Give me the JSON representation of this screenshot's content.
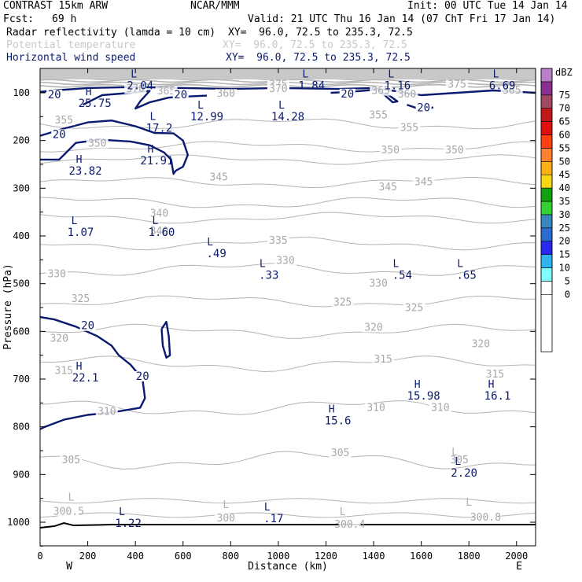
{
  "header": {
    "model": "CONTRAST 15km ARW",
    "org": "NCAR/MMM",
    "init": "Init: 00 UTC Tue 14 Jan 14",
    "fcst_label": "Fcst:",
    "fcst_value": "69 h",
    "valid": "Valid: 21 UTC Thu 16 Jan 14 (07 ChT Fri 17 Jan 14)",
    "fields": [
      {
        "name": "Radar reflectivity (lamda = 10 cm)",
        "xy": "XY=  96.0, 72.5 to 235.3, 72.5",
        "color": "#000000"
      },
      {
        "name": "Potential temperature",
        "xy": "XY=  96.0, 72.5 to 235.3, 72.5",
        "color": "#c8c8c8"
      },
      {
        "name": "Horizontal wind speed",
        "xy": "XY=  96.0, 72.5 to 235.3, 72.5",
        "color": "#0a1a6e"
      }
    ]
  },
  "chart_data": {
    "type": "contour",
    "xlabel": "Distance (km)",
    "ylabel": "Pressure (hPa)",
    "xlim": [
      0,
      2080
    ],
    "ylim": [
      1050,
      60
    ],
    "x_ticks": [
      0,
      200,
      400,
      600,
      800,
      1000,
      1200,
      1400,
      1600,
      1800,
      2000
    ],
    "y_ticks": [
      100,
      200,
      300,
      400,
      500,
      600,
      700,
      800,
      900,
      1000
    ],
    "direction_labels": {
      "west": "W",
      "east": "E"
    },
    "colors": {
      "theta": "#b4b4b4",
      "wind": "#0a1a6e",
      "ground": "#000000"
    },
    "colorbar": {
      "unit": "dBZ",
      "levels": [
        0,
        5,
        10,
        15,
        20,
        25,
        30,
        35,
        40,
        45,
        50,
        55,
        60,
        65,
        70,
        75
      ],
      "colors": [
        "#ffffff",
        "#80ffff",
        "#30b4f0",
        "#2828f0",
        "#2c6cd0",
        "#3a86c0",
        "#34d034",
        "#10a010",
        "#f8d814",
        "#ffb014",
        "#ff8030",
        "#ff4010",
        "#e01010",
        "#c01818",
        "#a04a60",
        "#8a3090",
        "#b880c8"
      ]
    },
    "theta_labels": [
      {
        "text": "375",
        "x": 1000,
        "p": 88
      },
      {
        "text": "375",
        "x": 1750,
        "p": 88
      },
      {
        "text": "370",
        "x": 400,
        "p": 97
      },
      {
        "text": "370",
        "x": 1000,
        "p": 97
      },
      {
        "text": "365",
        "x": 530,
        "p": 102
      },
      {
        "text": "365",
        "x": 1430,
        "p": 101
      },
      {
        "text": "365",
        "x": 1980,
        "p": 100
      },
      {
        "text": "360",
        "x": 1540,
        "p": 108
      },
      {
        "text": "360",
        "x": 780,
        "p": 107
      },
      {
        "text": "355",
        "x": 100,
        "p": 163
      },
      {
        "text": "355",
        "x": 1420,
        "p": 152
      },
      {
        "text": "355",
        "x": 1550,
        "p": 178
      },
      {
        "text": "350",
        "x": 240,
        "p": 211
      },
      {
        "text": "350",
        "x": 1470,
        "p": 225
      },
      {
        "text": "350",
        "x": 1740,
        "p": 225
      },
      {
        "text": "345",
        "x": 750,
        "p": 282
      },
      {
        "text": "345",
        "x": 1460,
        "p": 303
      },
      {
        "text": "345",
        "x": 1610,
        "p": 292
      },
      {
        "text": "340",
        "x": 500,
        "p": 358
      },
      {
        "text": "340",
        "x": 500,
        "p": 395
      },
      {
        "text": "335",
        "x": 1000,
        "p": 415
      },
      {
        "text": "330",
        "x": 70,
        "p": 485
      },
      {
        "text": "330",
        "x": 1030,
        "p": 457
      },
      {
        "text": "330",
        "x": 1420,
        "p": 505
      },
      {
        "text": "325",
        "x": 170,
        "p": 537
      },
      {
        "text": "325",
        "x": 1270,
        "p": 544
      },
      {
        "text": "325",
        "x": 1570,
        "p": 556
      },
      {
        "text": "320",
        "x": 80,
        "p": 620
      },
      {
        "text": "320",
        "x": 1400,
        "p": 597
      },
      {
        "text": "320",
        "x": 1850,
        "p": 632
      },
      {
        "text": "315",
        "x": 100,
        "p": 688
      },
      {
        "text": "315",
        "x": 1440,
        "p": 664
      },
      {
        "text": "315",
        "x": 1910,
        "p": 695
      },
      {
        "text": "310",
        "x": 280,
        "p": 773
      },
      {
        "text": "310",
        "x": 1410,
        "p": 765
      },
      {
        "text": "310",
        "x": 1680,
        "p": 765
      },
      {
        "text": "305",
        "x": 130,
        "p": 875
      },
      {
        "text": "305",
        "x": 1260,
        "p": 860
      },
      {
        "text": "305",
        "x": 1760,
        "p": 875
      },
      {
        "text": "300.5",
        "x": 120,
        "p": 983
      },
      {
        "text": "300",
        "x": 780,
        "p": 997
      },
      {
        "text": "300.4",
        "x": 1300,
        "p": 1010
      },
      {
        "text": "300.8",
        "x": 1870,
        "p": 995
      }
    ],
    "theta_extrema": [
      {
        "text": "L",
        "x": 130,
        "p": 955
      },
      {
        "text": "L",
        "x": 780,
        "p": 970
      },
      {
        "text": "L",
        "x": 1270,
        "p": 985
      },
      {
        "text": "L",
        "x": 1800,
        "p": 965
      },
      {
        "text": "L",
        "x": 1740,
        "p": 860
      }
    ],
    "wind_labels": [
      {
        "text": "20",
        "x": 60,
        "p": 110
      },
      {
        "text": "20",
        "x": 590,
        "p": 110
      },
      {
        "text": "20",
        "x": 1290,
        "p": 108
      },
      {
        "text": "20",
        "x": 1610,
        "p": 137
      },
      {
        "text": "20",
        "x": 80,
        "p": 193
      },
      {
        "text": "20",
        "x": 200,
        "p": 594
      },
      {
        "text": "20",
        "x": 430,
        "p": 700
      }
    ],
    "wind_extrema": [
      {
        "type": "L",
        "value": "2.04",
        "x": 420,
        "p": 68
      },
      {
        "type": "L",
        "value": "1.84",
        "x": 1140,
        "p": 68
      },
      {
        "type": "L",
        "value": "1.16",
        "x": 1500,
        "p": 68
      },
      {
        "type": "L",
        "value": "6.69",
        "x": 1940,
        "p": 68
      },
      {
        "type": "H",
        "value": "25.75",
        "x": 230,
        "p": 105
      },
      {
        "type": "L",
        "value": "12.99",
        "x": 700,
        "p": 133
      },
      {
        "type": "L",
        "value": "14.28",
        "x": 1040,
        "p": 133
      },
      {
        "type": "L",
        "value": "17.2",
        "x": 500,
        "p": 157
      },
      {
        "type": "H",
        "value": "21.91",
        "x": 490,
        "p": 225
      },
      {
        "type": "H",
        "value": "23.82",
        "x": 190,
        "p": 247
      },
      {
        "type": "L",
        "value": "1.07",
        "x": 170,
        "p": 375
      },
      {
        "type": "L",
        "value": "1.60",
        "x": 510,
        "p": 375
      },
      {
        "type": "L",
        "value": ".49",
        "x": 740,
        "p": 420
      },
      {
        "type": "L",
        "value": ".33",
        "x": 960,
        "p": 465
      },
      {
        "type": "L",
        "value": ".54",
        "x": 1520,
        "p": 465
      },
      {
        "type": "L",
        "value": ".65",
        "x": 1790,
        "p": 465
      },
      {
        "type": "H",
        "value": "22.1",
        "x": 190,
        "p": 680
      },
      {
        "type": "H",
        "value": "15.98",
        "x": 1610,
        "p": 718
      },
      {
        "type": "H",
        "value": "16.1",
        "x": 1920,
        "p": 718
      },
      {
        "type": "H",
        "value": "15.6",
        "x": 1250,
        "p": 770
      },
      {
        "type": "L",
        "value": "2.20",
        "x": 1780,
        "p": 880
      },
      {
        "type": "L",
        "value": "1.22",
        "x": 370,
        "p": 985
      },
      {
        "type": "L",
        "value": ".17",
        "x": 980,
        "p": 975
      }
    ]
  }
}
